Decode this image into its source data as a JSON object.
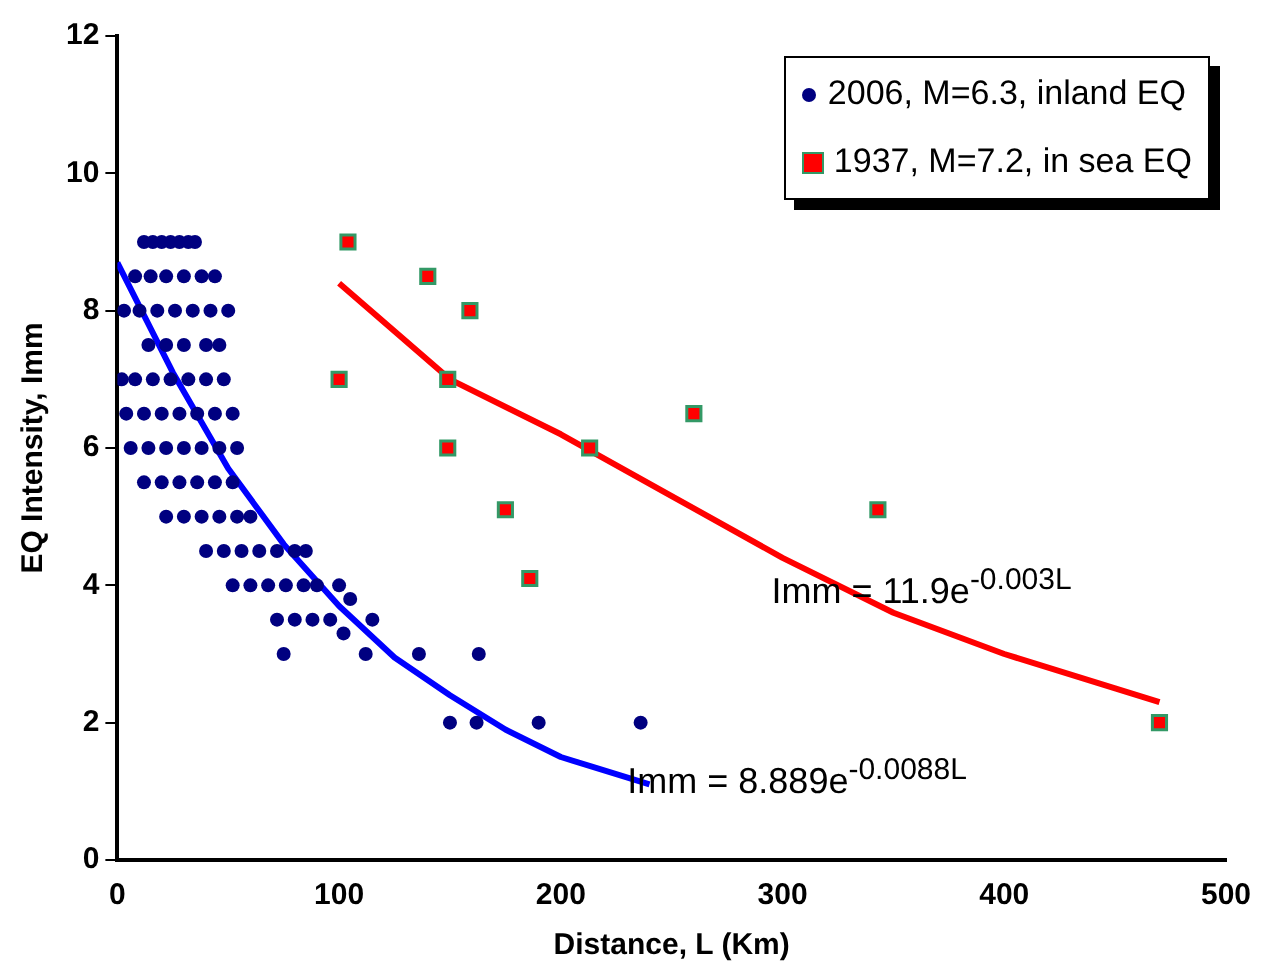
{
  "chart_data": {
    "type": "scatter",
    "xlabel": "Distance, L (Km)",
    "ylabel": "EQ Intensity, Imm",
    "xlim": [
      0,
      500
    ],
    "xticks": [
      0,
      100,
      200,
      300,
      400,
      500
    ],
    "ylim": [
      0,
      12
    ],
    "yticks": [
      0,
      2,
      4,
      6,
      8,
      10,
      12
    ],
    "grid": false,
    "legend": "top right",
    "series": [
      {
        "name": "2006, M=6.3, inland EQ",
        "type": "scatter",
        "marker": "circle",
        "color": "#000080",
        "x": [
          12,
          16,
          20,
          24,
          28,
          32,
          35,
          8,
          15,
          22,
          30,
          38,
          44,
          3,
          10,
          18,
          26,
          34,
          42,
          50,
          14,
          22,
          30,
          40,
          46,
          2,
          8,
          16,
          24,
          32,
          40,
          48,
          4,
          12,
          20,
          28,
          36,
          44,
          52,
          6,
          14,
          22,
          30,
          38,
          46,
          54,
          12,
          20,
          28,
          36,
          44,
          52,
          22,
          30,
          38,
          46,
          54,
          60,
          40,
          48,
          56,
          64,
          72,
          80,
          85,
          52,
          60,
          68,
          76,
          84,
          90,
          100,
          105,
          72,
          80,
          88,
          96,
          115,
          75,
          102,
          112,
          136,
          163,
          162,
          150,
          190,
          236
        ],
        "values": [
          9,
          9,
          9,
          9,
          9,
          9,
          9,
          8.5,
          8.5,
          8.5,
          8.5,
          8.5,
          8.5,
          8,
          8,
          8,
          8,
          8,
          8,
          8,
          7.5,
          7.5,
          7.5,
          7.5,
          7.5,
          7,
          7,
          7,
          7,
          7,
          7,
          7,
          6.5,
          6.5,
          6.5,
          6.5,
          6.5,
          6.5,
          6.5,
          6,
          6,
          6,
          6,
          6,
          6,
          6,
          5.5,
          5.5,
          5.5,
          5.5,
          5.5,
          5.5,
          5,
          5,
          5,
          5,
          5,
          5,
          4.5,
          4.5,
          4.5,
          4.5,
          4.5,
          4.5,
          4.5,
          4,
          4,
          4,
          4,
          4,
          4,
          4,
          3.8,
          3.5,
          3.5,
          3.5,
          3.5,
          3.5,
          3,
          3.3,
          3,
          3,
          3,
          2,
          2,
          2,
          2
        ]
      },
      {
        "name": "1937, M=7.2, in sea EQ",
        "type": "scatter",
        "marker": "square",
        "color": "#ff0000",
        "x": [
          104,
          140,
          159,
          100,
          149,
          149,
          213,
          260,
          175,
          186,
          343,
          470
        ],
        "values": [
          9,
          8.5,
          8,
          7,
          7,
          6,
          6,
          6.5,
          5.1,
          4.1,
          5.1,
          2
        ]
      },
      {
        "type": "line",
        "marker": "none",
        "color": "#0000ff",
        "x": [
          0,
          25,
          50,
          75,
          100,
          125,
          150,
          175,
          200,
          240
        ],
        "values": [
          8.7,
          7.1,
          5.7,
          4.6,
          3.7,
          2.95,
          2.4,
          1.9,
          1.5,
          1.1
        ]
      },
      {
        "type": "line",
        "marker": "none",
        "color": "#ff0000",
        "x": [
          100,
          150,
          200,
          250,
          300,
          350,
          400,
          450,
          470
        ],
        "values": [
          8.4,
          7,
          6.2,
          5.3,
          4.4,
          3.6,
          3,
          2.5,
          2.3
        ]
      }
    ],
    "annotations": [
      "Imm = 11.9e$^{-0.003L}$",
      "Imm = 8.889e$^{-0.0088L}$"
    ]
  }
}
